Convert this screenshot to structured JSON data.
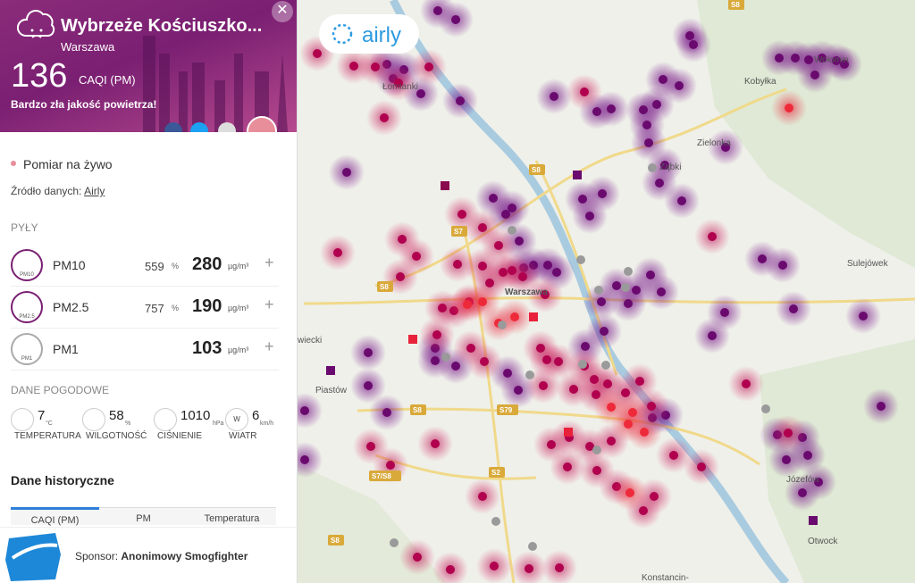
{
  "header": {
    "title": "Wybrzeże Kościuszko...",
    "city": "Warszawa",
    "index_value": 136,
    "index_unit": "CAQI (PM)",
    "description": "Bardzo zła jakość powietrza!"
  },
  "live": "Pomiar na żywo",
  "source_label": "Źródło danych:",
  "source": "Airly",
  "dust": {
    "title": "PYŁY",
    "rows": [
      {
        "name": "PM10",
        "icon": "PM10",
        "percent": 559,
        "percent_unit": "%",
        "value": 280,
        "unit": "µg/m³"
      },
      {
        "name": "PM2.5",
        "icon": "PM2.5",
        "percent": 757,
        "percent_unit": "%",
        "value": 190,
        "unit": "µg/m³"
      },
      {
        "name": "PM1",
        "icon": "PM1",
        "value": 103,
        "unit": "µg/m³"
      }
    ]
  },
  "weather": {
    "title": "DANE POGODOWE",
    "items": [
      {
        "value": 7,
        "unit": "°C",
        "label": "TEMPERATURA"
      },
      {
        "value": 58,
        "unit": "%",
        "label": "WILGOTNOŚĆ"
      },
      {
        "value": 1010,
        "unit": "hPa",
        "label": "CIŚNIENIE"
      },
      {
        "value": 6,
        "unit": "km/h",
        "label": "WIATR",
        "icon": "W"
      }
    ]
  },
  "history": {
    "title": "Dane historyczne",
    "tabs": [
      "CAQI (PM)",
      "PM",
      "Temperatura"
    ]
  },
  "sponsor": {
    "label": "Sponsor:",
    "name": "Anonimowy Smogfighter"
  },
  "map": {
    "logo": "airly",
    "places": [
      "Łomianki",
      "Kobyłka",
      "Zielonka",
      "Ząbki",
      "Warszawa",
      "Sulejówek",
      "Piastów",
      "Otwock",
      "Józefów",
      "Konstancin-",
      "wiecki",
      "Wołomin"
    ],
    "roads": [
      "S8",
      "S8",
      "S7",
      "S8",
      "S79",
      "S2",
      "S7/S8",
      "S8",
      "S8"
    ]
  }
}
